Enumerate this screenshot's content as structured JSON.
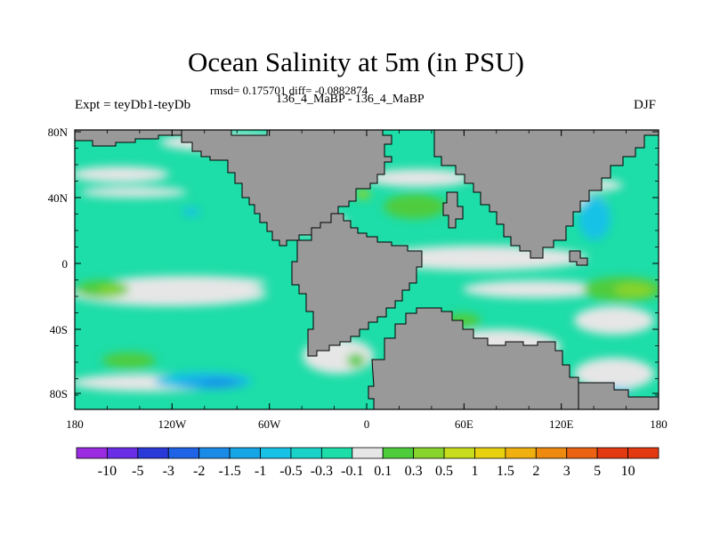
{
  "title": "Ocean Salinity at 5m (in PSU)",
  "subtitle": "rmsd= 0.175701 diff= -0.0882874",
  "left_label": "Expt = teyDb1-teyDb",
  "center_label": "136_4_MaBP - 136_4_MaBP",
  "right_label": "DJF",
  "lat_ticks": [
    "80N",
    "40N",
    "0",
    "40S",
    "80S"
  ],
  "lon_ticks": [
    "180",
    "120W",
    "60W",
    "0",
    "60E",
    "120E",
    "180"
  ],
  "colorbar": {
    "labels": [
      "-10",
      "-5",
      "-3",
      "-2",
      "-1.5",
      "-1",
      "-0.5",
      "-0.3",
      "-0.1",
      "0.1",
      "0.3",
      "0.5",
      "1",
      "1.5",
      "2",
      "3",
      "5",
      "10"
    ],
    "colors": [
      "#9a2be0",
      "#6a2ee6",
      "#2a3ad8",
      "#1f63e6",
      "#1b8be8",
      "#16a6e8",
      "#17c2e6",
      "#19d3c9",
      "#1ddda8",
      "#e6e6e6",
      "#4fcc3c",
      "#89d42c",
      "#c8de1c",
      "#e8d20f",
      "#f0b00f",
      "#ee8a10",
      "#ea6212",
      "#e33a12"
    ]
  },
  "map_colors": {
    "land": "#999999",
    "ocean_base": "#1ddda8",
    "near_zero": "#e6e6e6",
    "fresher_mid": "#17c2e6",
    "fresher_strong": "#16a6e8",
    "fresher_deep": "#1b8be8",
    "saltier_low": "#4fcc3c",
    "saltier_mid": "#89d42c",
    "saltier_high": "#c8de1c"
  }
}
